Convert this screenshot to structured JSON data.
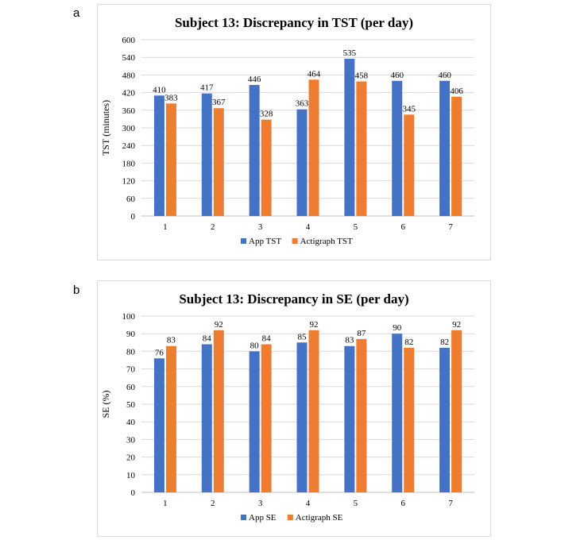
{
  "panels": [
    {
      "label": "a"
    },
    {
      "label": "b"
    }
  ],
  "colors": {
    "app": "#4472c4",
    "actigraph": "#ed7d31",
    "grid": "#d9d9d9",
    "axis": "#bfbfbf"
  },
  "chart_data": [
    {
      "type": "bar",
      "title": "Subject 13: Discrepancy in TST (per day)",
      "xlabel": "",
      "ylabel": "TST (minutes)",
      "ylim": [
        0,
        600
      ],
      "yticks": [
        0,
        60,
        120,
        180,
        240,
        300,
        360,
        420,
        480,
        540,
        600
      ],
      "categories": [
        "1",
        "2",
        "3",
        "4",
        "5",
        "6",
        "7"
      ],
      "grid": true,
      "legend_position": "bottom",
      "series": [
        {
          "name": "App TST",
          "values": [
            410,
            417,
            446,
            363,
            535,
            460,
            460
          ]
        },
        {
          "name": "Actigraph TST",
          "values": [
            383,
            367,
            328,
            464,
            458,
            345,
            406
          ]
        }
      ]
    },
    {
      "type": "bar",
      "title": "Subject 13: Discrepancy in SE (per day)",
      "xlabel": "",
      "ylabel": "SE (%)",
      "ylim": [
        0,
        100
      ],
      "yticks": [
        0,
        10,
        20,
        30,
        40,
        50,
        60,
        70,
        80,
        90,
        100
      ],
      "categories": [
        "1",
        "2",
        "3",
        "4",
        "5",
        "6",
        "7"
      ],
      "grid": true,
      "legend_position": "bottom",
      "series": [
        {
          "name": "App SE",
          "values": [
            76,
            84,
            80,
            85,
            83,
            90,
            82
          ]
        },
        {
          "name": "Actigraph SE",
          "values": [
            83,
            92,
            84,
            92,
            87,
            82,
            92
          ]
        }
      ]
    }
  ]
}
